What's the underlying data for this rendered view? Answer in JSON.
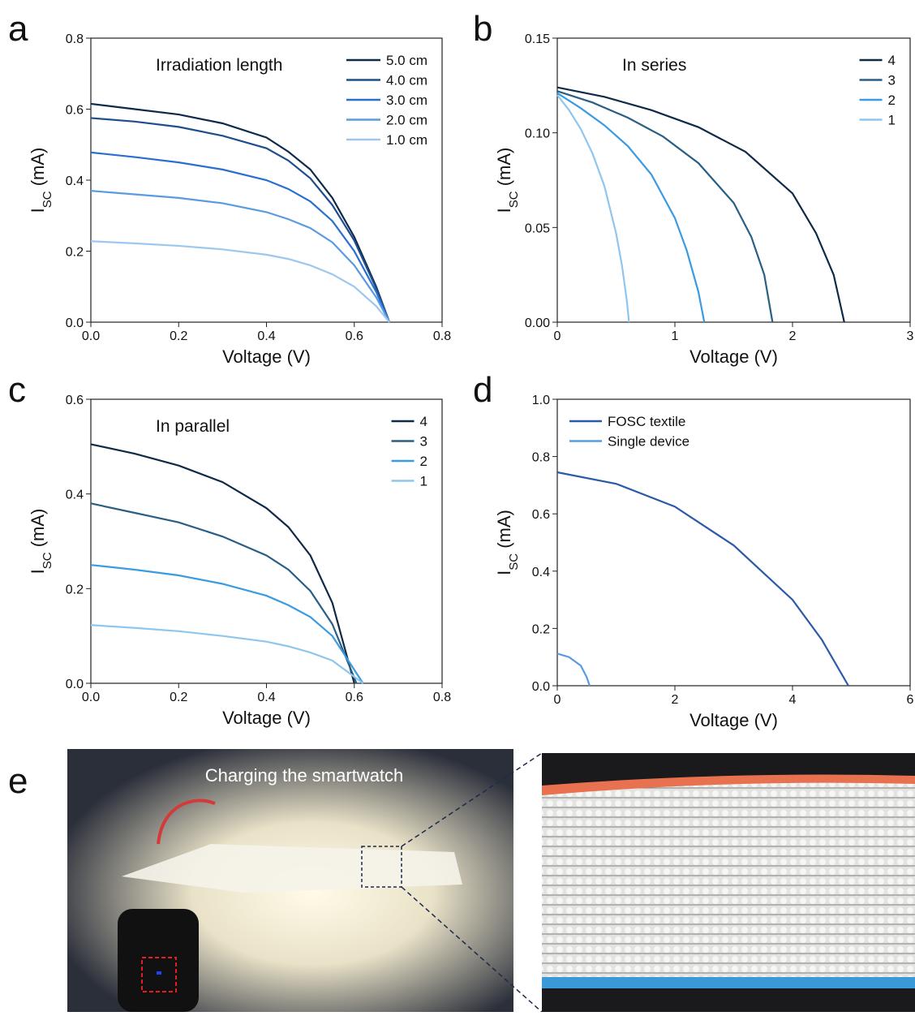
{
  "chart_data": [
    {
      "type": "line",
      "panel": "a",
      "annotation": "Irradiation length",
      "xlabel": "Voltage (V)",
      "ylabel": [
        "I",
        "SC",
        " (mA)"
      ],
      "xlim": [
        0,
        0.8
      ],
      "ylim": [
        0,
        0.8
      ],
      "xticks": [
        {
          "value": 0,
          "label": "0.0"
        },
        0.2,
        0.4,
        0.6,
        0.8
      ],
      "yticks": [
        {
          "value": 0,
          "label": "0.0"
        },
        0.2,
        0.4,
        0.6,
        0.8
      ],
      "legend": "upper right",
      "x": [
        0,
        0.1,
        0.2,
        0.3,
        0.4,
        0.45,
        0.5,
        0.55,
        0.6,
        0.65,
        0.68
      ],
      "series": [
        {
          "name": "5.0 cm",
          "color": "#0d2a4a",
          "values": [
            0.615,
            0.6,
            0.585,
            0.56,
            0.52,
            0.48,
            0.43,
            0.35,
            0.24,
            0.1,
            0
          ]
        },
        {
          "name": "4.0 cm",
          "color": "#1f4e8c",
          "values": [
            0.575,
            0.565,
            0.55,
            0.525,
            0.49,
            0.455,
            0.405,
            0.33,
            0.23,
            0.095,
            0
          ]
        },
        {
          "name": "3.0 cm",
          "color": "#2a6fd0",
          "values": [
            0.478,
            0.465,
            0.45,
            0.43,
            0.4,
            0.375,
            0.34,
            0.285,
            0.2,
            0.085,
            0
          ]
        },
        {
          "name": "2.0 cm",
          "color": "#5a9be0",
          "values": [
            0.37,
            0.36,
            0.35,
            0.335,
            0.31,
            0.29,
            0.265,
            0.225,
            0.16,
            0.07,
            0
          ]
        },
        {
          "name": "1.0 cm",
          "color": "#9cc7ef",
          "values": [
            0.228,
            0.222,
            0.215,
            0.205,
            0.19,
            0.178,
            0.16,
            0.135,
            0.1,
            0.045,
            0
          ]
        }
      ]
    },
    {
      "type": "line",
      "panel": "b",
      "annotation": "In series",
      "xlabel": "Voltage (V)",
      "ylabel": [
        "I",
        "SC",
        " (mA)"
      ],
      "xlim": [
        0,
        3
      ],
      "ylim": [
        0,
        0.15
      ],
      "xticks": [
        0,
        1,
        2,
        3
      ],
      "yticks": [
        {
          "value": 0,
          "label": "0.00"
        },
        0.05,
        {
          "value": 0.1,
          "label": "0.10"
        },
        0.15
      ],
      "legend": "upper right",
      "series": [
        {
          "name": "4",
          "color": "#0f2a47",
          "x": [
            0,
            0.4,
            0.8,
            1.2,
            1.6,
            2.0,
            2.2,
            2.35,
            2.44
          ],
          "values": [
            0.124,
            0.119,
            0.112,
            0.103,
            0.09,
            0.068,
            0.047,
            0.025,
            0
          ]
        },
        {
          "name": "3",
          "color": "#2a5f85",
          "x": [
            0,
            0.3,
            0.6,
            0.9,
            1.2,
            1.5,
            1.65,
            1.76,
            1.83
          ],
          "values": [
            0.122,
            0.116,
            0.108,
            0.098,
            0.084,
            0.063,
            0.045,
            0.025,
            0
          ]
        },
        {
          "name": "2",
          "color": "#3a9be0",
          "x": [
            0,
            0.2,
            0.4,
            0.6,
            0.8,
            1.0,
            1.1,
            1.2,
            1.25
          ],
          "values": [
            0.121,
            0.113,
            0.104,
            0.093,
            0.078,
            0.055,
            0.038,
            0.016,
            0
          ]
        },
        {
          "name": "1",
          "color": "#8fc6ee",
          "x": [
            0,
            0.1,
            0.2,
            0.3,
            0.4,
            0.5,
            0.55,
            0.59,
            0.61
          ],
          "values": [
            0.12,
            0.112,
            0.102,
            0.089,
            0.072,
            0.047,
            0.03,
            0.012,
            0
          ]
        }
      ]
    },
    {
      "type": "line",
      "panel": "c",
      "annotation": "In parallel",
      "xlabel": "Voltage (V)",
      "ylabel": [
        "I",
        "SC",
        " (mA)"
      ],
      "xlim": [
        0,
        0.8
      ],
      "ylim": [
        0,
        0.6
      ],
      "xticks": [
        {
          "value": 0,
          "label": "0.0"
        },
        0.2,
        0.4,
        0.6,
        0.8
      ],
      "yticks": [
        {
          "value": 0,
          "label": "0.0"
        },
        0.2,
        0.4,
        0.6
      ],
      "legend": "upper right",
      "series": [
        {
          "name": "4",
          "color": "#0f2a47",
          "x": [
            0,
            0.1,
            0.2,
            0.3,
            0.4,
            0.45,
            0.5,
            0.55,
            0.6
          ],
          "values": [
            0.505,
            0.485,
            0.46,
            0.425,
            0.37,
            0.33,
            0.27,
            0.17,
            0
          ]
        },
        {
          "name": "3",
          "color": "#2a5f85",
          "x": [
            0,
            0.1,
            0.2,
            0.3,
            0.4,
            0.45,
            0.5,
            0.55,
            0.605
          ],
          "values": [
            0.38,
            0.36,
            0.34,
            0.31,
            0.27,
            0.24,
            0.195,
            0.125,
            0
          ]
        },
        {
          "name": "2",
          "color": "#3a9be0",
          "x": [
            0,
            0.1,
            0.2,
            0.3,
            0.4,
            0.45,
            0.5,
            0.55,
            0.62
          ],
          "values": [
            0.25,
            0.24,
            0.228,
            0.21,
            0.185,
            0.165,
            0.14,
            0.1,
            0
          ]
        },
        {
          "name": "1",
          "color": "#8fc6ee",
          "x": [
            0,
            0.1,
            0.2,
            0.3,
            0.4,
            0.45,
            0.5,
            0.55,
            0.62
          ],
          "values": [
            0.123,
            0.117,
            0.11,
            0.1,
            0.088,
            0.078,
            0.065,
            0.048,
            0
          ]
        }
      ]
    },
    {
      "type": "line",
      "panel": "d",
      "xlabel": "Voltage (V)",
      "ylabel": [
        "I",
        "SC",
        " (mA)"
      ],
      "xlim": [
        0,
        6
      ],
      "ylim": [
        0,
        1
      ],
      "xticks": [
        0,
        2,
        4,
        6
      ],
      "yticks": [
        {
          "value": 0,
          "label": "0.0"
        },
        0.2,
        0.4,
        0.6,
        0.8,
        {
          "value": 1,
          "label": "1.0"
        }
      ],
      "legend": "upper left",
      "series": [
        {
          "name": "FOSC textile",
          "color": "#2a5aa8",
          "x": [
            0,
            1,
            2,
            3,
            4,
            4.5,
            4.95
          ],
          "values": [
            0.745,
            0.705,
            0.625,
            0.49,
            0.3,
            0.16,
            0
          ]
        },
        {
          "name": "Single device",
          "color": "#5a9be0",
          "x": [
            0,
            0.2,
            0.4,
            0.5,
            0.55
          ],
          "values": [
            0.112,
            0.1,
            0.07,
            0.03,
            0
          ]
        }
      ]
    }
  ],
  "photo": {
    "panel": "e",
    "caption": "Charging the smartwatch"
  }
}
